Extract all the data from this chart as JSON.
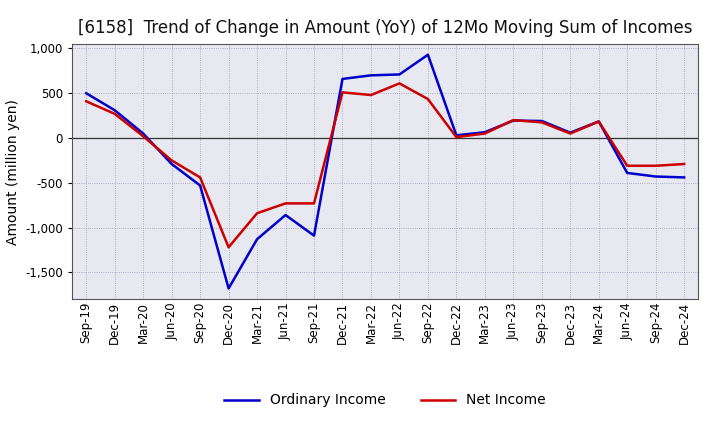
{
  "title": "[6158]  Trend of Change in Amount (YoY) of 12Mo Moving Sum of Incomes",
  "ylabel": "Amount (million yen)",
  "x_labels": [
    "Sep-19",
    "Dec-19",
    "Mar-20",
    "Jun-20",
    "Sep-20",
    "Dec-20",
    "Mar-21",
    "Jun-21",
    "Sep-21",
    "Dec-21",
    "Mar-22",
    "Jun-22",
    "Sep-22",
    "Dec-22",
    "Mar-23",
    "Jun-23",
    "Sep-23",
    "Dec-23",
    "Mar-24",
    "Jun-24",
    "Sep-24",
    "Dec-24"
  ],
  "ordinary_income": [
    500,
    310,
    50,
    -290,
    -530,
    -1680,
    -1130,
    -860,
    -1090,
    660,
    700,
    710,
    930,
    30,
    65,
    195,
    190,
    60,
    185,
    -390,
    -430,
    -440
  ],
  "net_income": [
    410,
    270,
    20,
    -250,
    -440,
    -1220,
    -840,
    -730,
    -730,
    510,
    480,
    610,
    435,
    10,
    50,
    200,
    175,
    50,
    185,
    -310,
    -310,
    -290
  ],
  "ordinary_income_color": "#0000CC",
  "net_income_color": "#CC0000",
  "ylim": [
    -1800,
    1050
  ],
  "yticks": [
    -1500,
    -1000,
    -500,
    0,
    500,
    1000
  ],
  "plot_bg_color": "#E8E8F0",
  "fig_bg_color": "#FFFFFF",
  "grid_color": "#9999BB",
  "title_fontsize": 12,
  "legend_fontsize": 10,
  "ylabel_fontsize": 10,
  "tick_fontsize": 8.5,
  "line_width": 1.8
}
